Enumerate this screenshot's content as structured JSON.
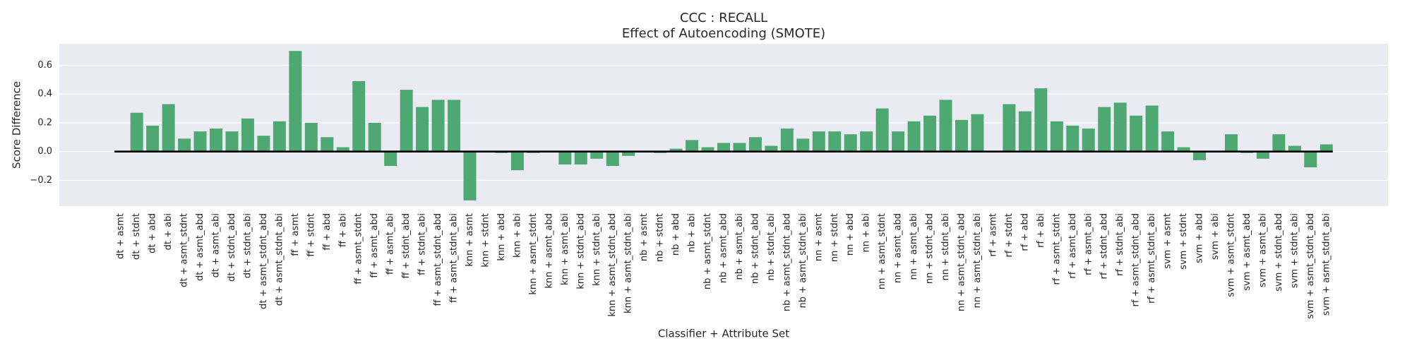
{
  "chart_data": {
    "type": "bar",
    "title": "CCC : RECALL",
    "subtitle": "Effect of Autoencoding (SMOTE)",
    "x_label": "Classifier + Attribute Set",
    "y_label": "Score Difference",
    "color": "#4ea872",
    "grid": true,
    "ylim": [
      -0.38,
      0.75
    ],
    "yticks": [
      {
        "value": -0.2,
        "label": "−0.2"
      },
      {
        "value": 0,
        "label": "0.0"
      },
      {
        "value": 0.2,
        "label": "0.2"
      },
      {
        "value": 0.4,
        "label": "0.4"
      },
      {
        "value": 0.6,
        "label": "0.6"
      }
    ],
    "categories": [
      "dt + asmt",
      "dt + stdnt",
      "dt + abd",
      "dt + abi",
      "dt + asmt_stdnt",
      "dt + asmt_abd",
      "dt + asmt_abi",
      "dt + stdnt_abd",
      "dt + stdnt_abi",
      "dt + asmt_stdnt_abd",
      "dt + asmt_stdnt_abi",
      "ff + asmt",
      "ff + stdnt",
      "ff + abd",
      "ff + abi",
      "ff + asmt_stdnt",
      "ff + asmt_abd",
      "ff + asmt_abi",
      "ff + stdnt_abd",
      "ff + stdnt_abi",
      "ff + asmt_stdnt_abd",
      "ff + asmt_stdnt_abi",
      "knn + asmt",
      "knn + stdnt",
      "knn + abd",
      "knn + abi",
      "knn + asmt_stdnt",
      "knn + asmt_abd",
      "knn + asmt_abi",
      "knn + stdnt_abd",
      "knn + stdnt_abi",
      "knn + asmt_stdnt_abd",
      "knn + asmt_stdnt_abi",
      "nb + asmt",
      "nb + stdnt",
      "nb + abd",
      "nb + abi",
      "nb + asmt_stdnt",
      "nb + asmt_abd",
      "nb + asmt_abi",
      "nb + stdnt_abd",
      "nb + stdnt_abi",
      "nb + asmt_stdnt_abd",
      "nb + asmt_stdnt_abi",
      "nn + asmt",
      "nn + stdnt",
      "nn + abd",
      "nn + abi",
      "nn + asmt_stdnt",
      "nn + asmt_abd",
      "nn + asmt_abi",
      "nn + stdnt_abd",
      "nn + stdnt_abi",
      "nn + asmt_stdnt_abd",
      "nn + asmt_stdnt_abi",
      "rf + asmt",
      "rf + stdnt",
      "rf + abd",
      "rf + abi",
      "rf + asmt_stdnt",
      "rf + asmt_abd",
      "rf + asmt_abi",
      "rf + stdnt_abd",
      "rf + stdnt_abi",
      "rf + asmt_stdnt_abd",
      "rf + asmt_stdnt_abi",
      "svm + asmt",
      "svm + stdnt",
      "svm + abd",
      "svm + abi",
      "svm + asmt_stdnt",
      "svm + asmt_abd",
      "svm + asmt_abi",
      "svm + stdnt_abd",
      "svm + stdnt_abi",
      "svm + asmt_stdnt_abd",
      "svm + asmt_stdnt_abi"
    ],
    "values": [
      0,
      0.27,
      0.18,
      0.33,
      0.09,
      0.14,
      0.16,
      0.14,
      0.23,
      0.11,
      0.21,
      0.7,
      0.2,
      0.1,
      0.03,
      0.49,
      0.2,
      -0.1,
      0.43,
      0.31,
      0.36,
      0.36,
      -0.34,
      0,
      -0.01,
      -0.13,
      -0.01,
      0,
      -0.09,
      -0.09,
      -0.05,
      -0.1,
      -0.03,
      0,
      -0.01,
      0.02,
      0.08,
      0.03,
      0.06,
      0.06,
      0.1,
      0.04,
      0.16,
      0.09,
      0.14,
      0.14,
      0.12,
      0.14,
      0.3,
      0.14,
      0.21,
      0.25,
      0.36,
      0.22,
      0.26,
      0,
      0.33,
      0.28,
      0.44,
      0.21,
      0.18,
      0.16,
      0.31,
      0.34,
      0.25,
      0.32,
      0.14,
      0.03,
      -0.06,
      0,
      0.12,
      -0.01,
      -0.05,
      0.12,
      0.04,
      -0.11,
      0.05
    ]
  }
}
